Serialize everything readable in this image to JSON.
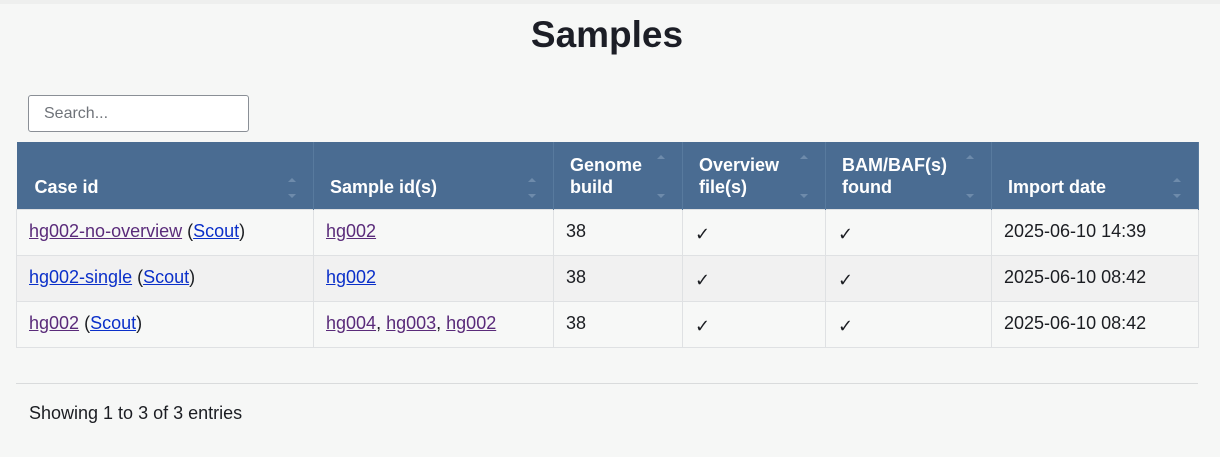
{
  "page": {
    "title": "Samples"
  },
  "search": {
    "placeholder": "Search..."
  },
  "table": {
    "headers": {
      "case_id": "Case id",
      "sample_ids": "Sample id(s)",
      "genome_build_1": "Genome",
      "genome_build_2": "build",
      "overview_1": "Overview",
      "overview_2": "file(s)",
      "bam_1": "BAM/BAF(s)",
      "bam_2": "found",
      "import_date": "Import date"
    },
    "rows": [
      {
        "case": "hg002-no-overview",
        "scout": "Scout",
        "samples": [
          "hg002"
        ],
        "genome_build": "38",
        "overview": "✓",
        "bam": "✓",
        "import_date": "2025-06-10 14:39"
      },
      {
        "case": "hg002-single",
        "scout": "Scout",
        "samples": [
          "hg002"
        ],
        "genome_build": "38",
        "overview": "✓",
        "bam": "✓",
        "import_date": "2025-06-10 08:42"
      },
      {
        "case": "hg002",
        "scout": "Scout",
        "samples": [
          "hg004",
          "hg003",
          "hg002"
        ],
        "genome_build": "38",
        "overview": "✓",
        "bam": "✓",
        "import_date": "2025-06-10 08:42"
      }
    ]
  },
  "footer": {
    "info": "Showing 1 to 3 of 3 entries"
  },
  "colors": {
    "header_bg": "#4a6c92",
    "link": "#0a2fc9",
    "visited_link": "#5a2b7a"
  }
}
